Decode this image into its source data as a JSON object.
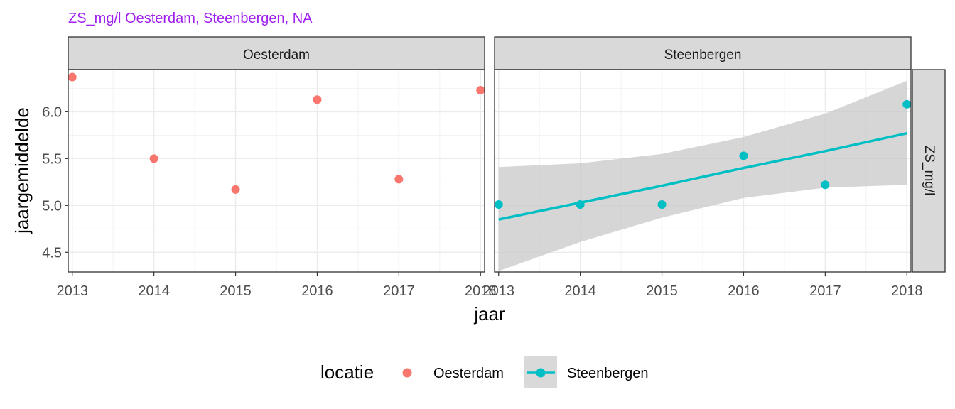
{
  "chart_data": {
    "type": "scatter",
    "title": "ZS_mg/l Oesterdam, Steenbergen, NA",
    "xlabel": "jaar",
    "ylabel": "jaargemiddelde",
    "strip_right": "ZS_mg/l",
    "xlim": [
      2012.95,
      2018.05
    ],
    "ylim": [
      4.29,
      6.45
    ],
    "x_ticks": [
      2013,
      2014,
      2015,
      2016,
      2017,
      2018
    ],
    "y_ticks": [
      4.5,
      5.0,
      5.5,
      6.0
    ],
    "y_tick_labels": [
      "4.5",
      "5.0",
      "5.5",
      "6.0"
    ],
    "colors": {
      "Oesterdam": "#f8766d",
      "Steenbergen": "#00bfc4",
      "title": "#a020f0",
      "ribbon": "#c8c8c8"
    },
    "panels": [
      {
        "name": "Oesterdam",
        "series": "Oesterdam",
        "points": [
          {
            "x": 2013,
            "y": 6.37
          },
          {
            "x": 2014,
            "y": 5.5
          },
          {
            "x": 2015,
            "y": 5.17
          },
          {
            "x": 2016,
            "y": 6.13
          },
          {
            "x": 2017,
            "y": 5.28
          },
          {
            "x": 2018,
            "y": 6.23
          }
        ],
        "trend": null
      },
      {
        "name": "Steenbergen",
        "series": "Steenbergen",
        "points": [
          {
            "x": 2013,
            "y": 5.01
          },
          {
            "x": 2014,
            "y": 5.01
          },
          {
            "x": 2015,
            "y": 5.01
          },
          {
            "x": 2016,
            "y": 5.53
          },
          {
            "x": 2017,
            "y": 5.22
          },
          {
            "x": 2018,
            "y": 6.08
          }
        ],
        "trend": {
          "x": [
            2013,
            2014,
            2015,
            2016,
            2017,
            2018
          ],
          "fit": [
            4.85,
            5.03,
            5.21,
            5.4,
            5.58,
            5.77
          ],
          "lower": [
            4.3,
            4.61,
            4.87,
            5.08,
            5.19,
            5.22
          ],
          "upper": [
            5.41,
            5.45,
            5.55,
            5.73,
            5.98,
            6.33
          ]
        }
      }
    ],
    "legend": {
      "title": "locatie",
      "position": "bottom",
      "items": [
        {
          "label": "Oesterdam",
          "key": "point"
        },
        {
          "label": "Steenbergen",
          "key": "point-line-ribbon"
        }
      ]
    }
  }
}
